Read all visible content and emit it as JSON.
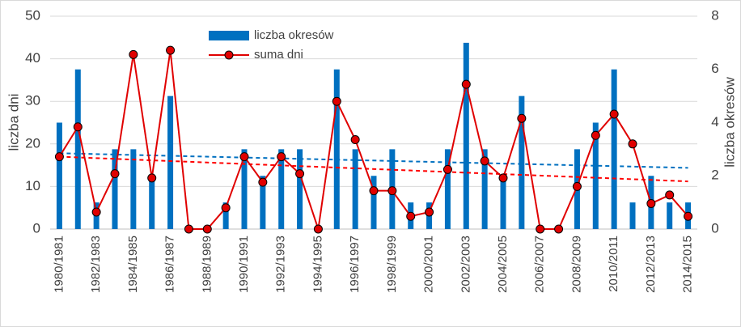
{
  "chart_data": {
    "type": "bar-line",
    "categories": [
      "1980/1981",
      null,
      "1982/1983",
      null,
      "1984/1985",
      null,
      "1986/1987",
      null,
      "1988/1989",
      null,
      "1990/1991",
      null,
      "1992/1993",
      null,
      "1994/1995",
      null,
      "1996/1997",
      null,
      "1998/1999",
      null,
      "2000/2001",
      null,
      "2002/2003",
      null,
      "2004/2005",
      null,
      "2006/2007",
      null,
      "2008/2009",
      null,
      "2010/2011",
      null,
      "2012/2013",
      null,
      "2014/2015"
    ],
    "series": [
      {
        "name": "liczba okresów",
        "type": "bar",
        "axis": "y2",
        "color": "#0070c0",
        "values": [
          4,
          6,
          1,
          3,
          3,
          2,
          5,
          0,
          0,
          1,
          3,
          2,
          3,
          3,
          0,
          6,
          3,
          2,
          3,
          1,
          1,
          3,
          7,
          3,
          2,
          5,
          0,
          0,
          3,
          4,
          6,
          1,
          2,
          1,
          1
        ]
      },
      {
        "name": "suma dni",
        "type": "line",
        "color": "#e00000",
        "values": [
          17,
          24,
          4,
          13,
          41,
          12,
          42,
          0,
          0,
          5,
          17,
          11,
          17,
          13,
          0,
          30,
          21,
          9,
          9,
          3,
          4,
          14,
          34,
          16,
          12,
          26,
          0,
          0,
          10,
          22,
          27,
          20,
          6,
          8,
          3
        ]
      }
    ],
    "trendlines": [
      {
        "axis": "y2",
        "color": "#0070c0",
        "values": [
          2.85,
          2.3
        ]
      },
      {
        "color": "#ff0000",
        "values": [
          17,
          11.2
        ]
      }
    ],
    "ylabel": "liczba dni",
    "y2label": "liczba okresów",
    "ylim": [
      0,
      50
    ],
    "yticks": [
      0,
      10,
      20,
      30,
      40,
      50
    ],
    "y2lim": [
      0,
      8
    ],
    "y2ticks": [
      0,
      2,
      4,
      6,
      8
    ],
    "grid": true
  }
}
